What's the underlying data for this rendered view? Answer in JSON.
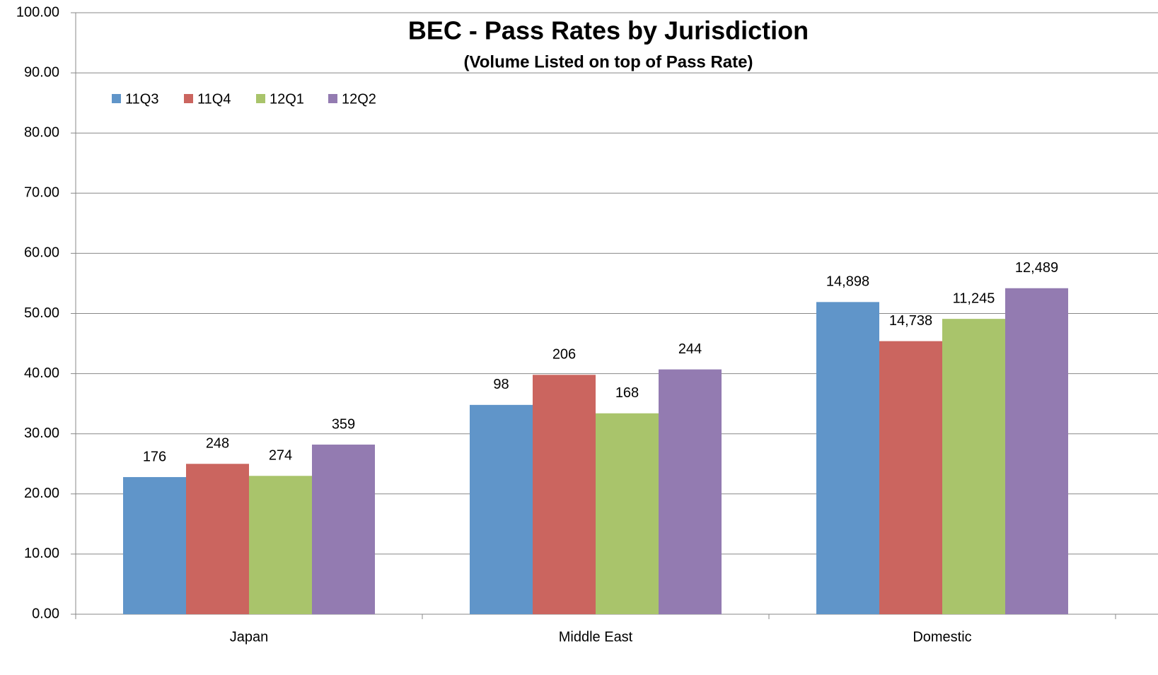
{
  "chart_data": {
    "type": "bar",
    "title": "BEC - Pass Rates by Jurisdiction",
    "subtitle": "(Volume Listed on top of Pass Rate)",
    "categories": [
      "Japan",
      "Middle East",
      "Domestic"
    ],
    "series": [
      {
        "name": "11Q3",
        "color": "#6095c9",
        "values": [
          22.8,
          34.8,
          51.9
        ],
        "volumes": [
          "176",
          "98",
          "14,898"
        ]
      },
      {
        "name": "11Q4",
        "color": "#cb655f",
        "values": [
          25.0,
          39.8,
          45.4
        ],
        "volumes": [
          "248",
          "206",
          "14,738"
        ]
      },
      {
        "name": "12Q1",
        "color": "#a9c46b",
        "values": [
          23.0,
          33.4,
          49.1
        ],
        "volumes": [
          "274",
          "168",
          "11,245"
        ]
      },
      {
        "name": "12Q2",
        "color": "#937bb1",
        "values": [
          28.2,
          40.7,
          54.2
        ],
        "volumes": [
          "359",
          "244",
          "12,489"
        ]
      }
    ],
    "ylim": [
      0,
      100
    ],
    "yticks": [
      {
        "value": 0,
        "label": "0.00"
      },
      {
        "value": 10,
        "label": "10.00"
      },
      {
        "value": 20,
        "label": "20.00"
      },
      {
        "value": 30,
        "label": "30.00"
      },
      {
        "value": 40,
        "label": "40.00"
      },
      {
        "value": 50,
        "label": "50.00"
      },
      {
        "value": 60,
        "label": "60.00"
      },
      {
        "value": 70,
        "label": "70.00"
      },
      {
        "value": 80,
        "label": "80.00"
      },
      {
        "value": 90,
        "label": "90.00"
      },
      {
        "value": 100,
        "label": "100.00"
      }
    ],
    "grid": true,
    "legend": "top-left"
  }
}
